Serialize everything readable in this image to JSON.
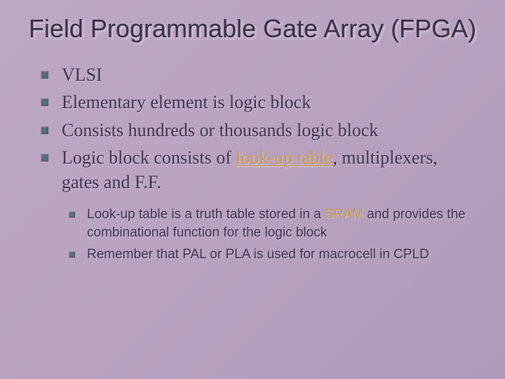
{
  "slide": {
    "title": "Field Programmable Gate Array (FPGA)",
    "bullets": [
      {
        "text": "VLSI"
      },
      {
        "text": "Elementary element is logic block"
      },
      {
        "text": "Consists hundreds or thousands logic block"
      },
      {
        "prefix": "Logic block consists of ",
        "highlight": "look-up table",
        "suffix": ", multiplexers, gates and F.F."
      }
    ],
    "sub_bullets": [
      {
        "prefix": "Look-up table is a truth table stored in a ",
        "highlight": "SRAM",
        "suffix": " and provides the combinational function for the logic block"
      },
      {
        "text": "Remember that PAL or PLA is used for macrocell in CPLD"
      }
    ]
  },
  "style": {
    "background_gradient": [
      "#bda8c4",
      "#b8a2c0",
      "#b09abb"
    ],
    "title_fontsize": 36,
    "title_color": "#3a2e44",
    "body_fontsize": 26,
    "body_color": "#3e3148",
    "sub_fontsize": 19,
    "bullet_marker_color": "#5a6b7d",
    "highlight_color": "#c99a4a",
    "title_font": "Verdana",
    "body_font": "Georgia",
    "sub_font": "Verdana"
  }
}
